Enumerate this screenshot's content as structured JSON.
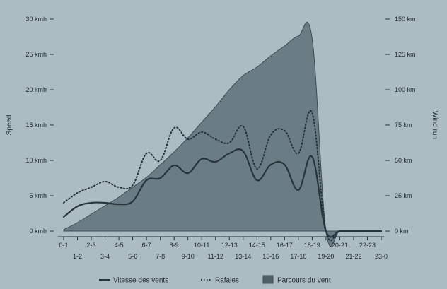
{
  "chart_data": {
    "type": "line",
    "categories": [
      "0-1",
      "1-2",
      "2-3",
      "3-4",
      "4-5",
      "5-6",
      "6-7",
      "7-8",
      "8-9",
      "9-10",
      "10-11",
      "11-12",
      "12-13",
      "13-14",
      "14-15",
      "15-16",
      "16-17",
      "17-18",
      "18-19",
      "19-20",
      "20-21",
      "21-22",
      "22-23",
      "23-0"
    ],
    "xlabel": "",
    "y_left": {
      "label": "Speed",
      "unit": "kmh",
      "ylim": [
        0,
        30
      ],
      "ticks": [
        0,
        5,
        10,
        15,
        20,
        25,
        30
      ]
    },
    "y_right": {
      "label": "Wind run",
      "unit": "km",
      "ylim": [
        0,
        150
      ],
      "ticks": [
        0,
        25,
        50,
        75,
        100,
        125,
        150
      ]
    },
    "grid": false,
    "legend_position": "bottom",
    "colors": {
      "background": "#abbcc3",
      "area_fill": "#6b7d84",
      "area_stroke": "#3e4b52",
      "line": "#27343b"
    },
    "series": [
      {
        "name": "Vitesse des vents",
        "kind": "line",
        "axis": "left",
        "values": [
          2.0,
          3.5,
          4.0,
          4.0,
          3.8,
          4.2,
          7.2,
          7.5,
          9.3,
          8.2,
          10.2,
          9.8,
          11.0,
          11.3,
          7.2,
          9.4,
          9.4,
          5.8,
          10.5,
          0.0,
          0.0,
          0.0,
          0.0,
          0.0
        ]
      },
      {
        "name": "Rafales",
        "kind": "dotted-line",
        "axis": "left",
        "values": [
          4.0,
          5.4,
          6.2,
          7.0,
          6.2,
          6.5,
          11.0,
          10.0,
          14.6,
          13.0,
          14.0,
          13.0,
          12.5,
          14.8,
          8.8,
          13.6,
          14.2,
          11.0,
          16.7,
          0.0,
          0.0,
          0.0,
          0.0,
          0.0
        ]
      },
      {
        "name": "Parcours du vent",
        "kind": "area",
        "axis": "right",
        "values": [
          1,
          6,
          12,
          18,
          24,
          31,
          38,
          47,
          56,
          66,
          77,
          88,
          100,
          110,
          116,
          124,
          131,
          138,
          136,
          0,
          0,
          0,
          0,
          0
        ]
      }
    ]
  }
}
